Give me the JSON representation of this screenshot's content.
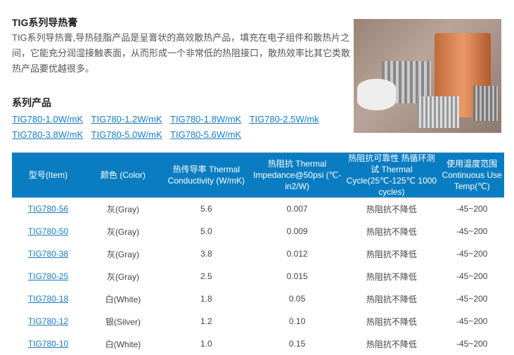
{
  "title": "TIG系列导热膏",
  "description": "TIG系列导热膏,导热硅脂产品是呈膏状的高效散热产品，填充在电子组件和散热片之间，它能充分润湿接触表面，从而形成一个非常低的热阻接口，散热效率比其它类散热产品要优越很多。",
  "series_title": "系列产品",
  "series_links": [
    "TIG780-1.0W/mK",
    "TIG780-1.2W/mK",
    "TIG780-1.8W/mK",
    "TIG780-2.5W/mk",
    "TIG780-3.8W/mK",
    "TIG780-5.0W/mK",
    "TIG780-5.6W/mK"
  ],
  "table": {
    "header_color": "#0a7dc2",
    "headers": [
      "型号(Item)",
      "颜色 (Color)",
      "热传导率 Thermal Conductivity (W/mK)",
      "热阻抗 Thermal Impedance@50psi (℃-in2/W)",
      "热阻抗可靠性 热循环测试 Thermal Cycle(25℃-125℃ 1000 cycles)",
      "使用温度范围Continuous Use Temp(℃)"
    ],
    "rows": [
      [
        "TIG780-56",
        "灰(Gray)",
        "5.6",
        "0.007",
        "热阻抗不降低",
        "-45~200"
      ],
      [
        "TIG780-50",
        "灰(Gray)",
        "5.0",
        "0.009",
        "热阻抗不降低",
        "-45~200"
      ],
      [
        "TIG780-38",
        "灰(Gray)",
        "3.8",
        "0.012",
        "热阻抗不降低",
        "-45~200"
      ],
      [
        "TIG780-25",
        "灰(Gray)",
        "2.5",
        "0.015",
        "热阻抗不降低",
        "-45~200"
      ],
      [
        "TIG780-18",
        "白(White)",
        "1.8",
        "0.05",
        "热阻抗不降低",
        "-45~200"
      ],
      [
        "TIG780-12",
        "银(Silver)",
        "1.2",
        "0.10",
        "热阻抗不降低",
        "-45~200"
      ],
      [
        "TIG780-10",
        "白(White)",
        "1.0",
        "0.15",
        "热阻抗不降低",
        "-45~200"
      ]
    ]
  }
}
